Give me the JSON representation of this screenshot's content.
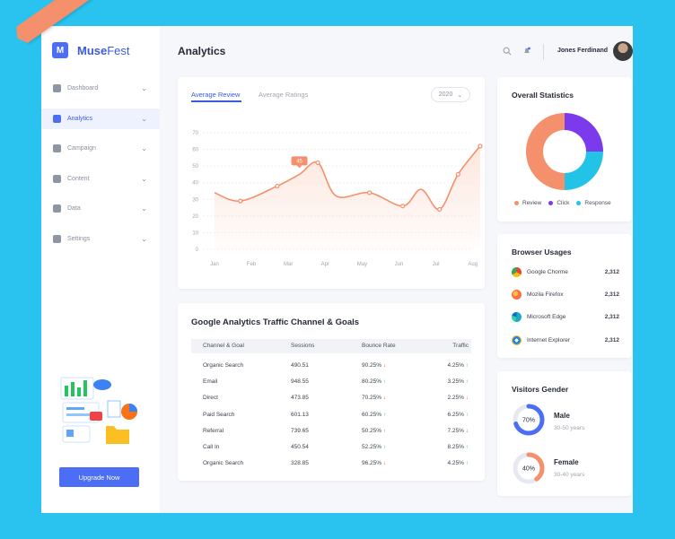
{
  "brand": {
    "logo_letter": "M",
    "name_bold": "Muse",
    "name_light": "Fest"
  },
  "sidebar": {
    "items": [
      {
        "label": "Dashboard",
        "icon": "grid-icon",
        "active": false
      },
      {
        "label": "Analytics",
        "icon": "bar-chart-icon",
        "active": true
      },
      {
        "label": "Campaign",
        "icon": "megaphone-icon",
        "active": false
      },
      {
        "label": "Content",
        "icon": "document-icon",
        "active": false
      },
      {
        "label": "Data",
        "icon": "database-icon",
        "active": false
      },
      {
        "label": "Settings",
        "icon": "gear-icon",
        "active": false
      }
    ],
    "upgrade_label": "Upgrade Now"
  },
  "header": {
    "title": "Analytics",
    "user_name": "Jones Ferdinand"
  },
  "review": {
    "tabs": [
      "Average Review",
      "Average Ratings"
    ],
    "year": "2020",
    "tooltip": "45"
  },
  "chart_data": {
    "type": "line",
    "x": [
      "Jan",
      "Feb",
      "Mar",
      "Apr",
      "May",
      "Jun",
      "Jul",
      "Aug"
    ],
    "y_ticks": [
      0,
      10,
      20,
      30,
      40,
      50,
      60,
      70
    ],
    "ylim": [
      0,
      70
    ],
    "grid": true,
    "points": [
      [
        0,
        34
      ],
      [
        0.7,
        29
      ],
      [
        1.7,
        38
      ],
      [
        2.3,
        45
      ],
      [
        2.8,
        52
      ],
      [
        3.3,
        32
      ],
      [
        4.2,
        34
      ],
      [
        5.1,
        26
      ],
      [
        5.6,
        36
      ],
      [
        6.1,
        24
      ],
      [
        6.6,
        45
      ],
      [
        7.2,
        62
      ]
    ],
    "markers": [
      [
        0.7,
        29
      ],
      [
        1.7,
        38
      ],
      [
        2.8,
        52
      ],
      [
        4.2,
        34
      ],
      [
        5.1,
        26
      ],
      [
        6.1,
        24
      ],
      [
        6.6,
        45
      ],
      [
        7.2,
        62
      ]
    ],
    "highlight": {
      "x": 2.3,
      "y": 45,
      "label": "45"
    },
    "colors": {
      "line": "#f4906c",
      "fill": "#fde5db"
    }
  },
  "traffic": {
    "title": "Google Analytics Traffic Channel & Goals",
    "columns": [
      "Channel & Goal",
      "Sessions",
      "Bounce Rate",
      "Traffic"
    ],
    "rows": [
      {
        "channel": "Organic Search",
        "sessions": "490.51",
        "bounce": "90.25%",
        "bounce_dir": "down",
        "traffic": "4.25%",
        "traffic_dir": "up"
      },
      {
        "channel": "Email",
        "sessions": "948.55",
        "bounce": "80.25%",
        "bounce_dir": "up",
        "traffic": "3.25%",
        "traffic_dir": "up"
      },
      {
        "channel": "Direct",
        "sessions": "473.85",
        "bounce": "70.25%",
        "bounce_dir": "down",
        "traffic": "2.25%",
        "traffic_dir": "down"
      },
      {
        "channel": "Paid Search",
        "sessions": "601.13",
        "bounce": "60.25%",
        "bounce_dir": "up",
        "traffic": "6.25%",
        "traffic_dir": "up"
      },
      {
        "channel": "Referral",
        "sessions": "739.65",
        "bounce": "50.25%",
        "bounce_dir": "up",
        "traffic": "7.25%",
        "traffic_dir": "down"
      },
      {
        "channel": "Call In",
        "sessions": "450.54",
        "bounce": "52.25%",
        "bounce_dir": "up",
        "traffic": "8.25%",
        "traffic_dir": "up"
      },
      {
        "channel": "Organic Search",
        "sessions": "328.85",
        "bounce": "96.25%",
        "bounce_dir": "down",
        "traffic": "4.25%",
        "traffic_dir": "up"
      }
    ]
  },
  "stats": {
    "title": "Overall Statistics",
    "segments": [
      {
        "name": "Review",
        "share": 0.5,
        "color": "#f4906c"
      },
      {
        "name": "Click",
        "share": 0.25,
        "color": "#7c3aed"
      },
      {
        "name": "Response",
        "share": 0.25,
        "color": "#22c3e6"
      }
    ]
  },
  "browsers": {
    "title": "Browser Usages",
    "items": [
      {
        "name": "Google Chorme",
        "value": "2,312",
        "icon": "chrome-icon",
        "color": "#ea4335"
      },
      {
        "name": "Mozila Firefox",
        "value": "2,312",
        "icon": "firefox-icon",
        "color": "#ff7139"
      },
      {
        "name": "Microsoft Edge",
        "value": "2,312",
        "icon": "edge-icon",
        "color": "#1fa8c9"
      },
      {
        "name": "Internet Explorer",
        "value": "2,312",
        "icon": "ie-icon",
        "color": "#1e88e5"
      }
    ]
  },
  "gender": {
    "title": "Visitors Gender",
    "items": [
      {
        "label": "Male",
        "range": "30-50 years",
        "percent": "70%",
        "share": 0.7,
        "color": "#4c6ef5"
      },
      {
        "label": "Female",
        "range": "30-40 years",
        "percent": "40%",
        "share": 0.4,
        "color": "#f4906c"
      }
    ]
  }
}
